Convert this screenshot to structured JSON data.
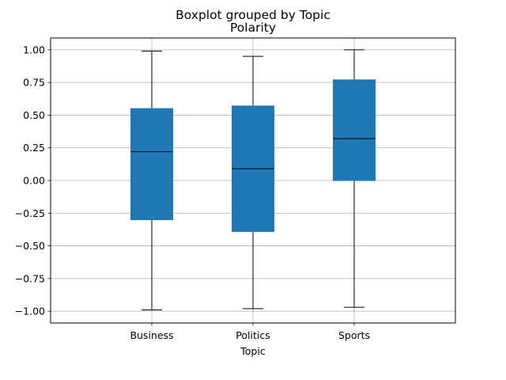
{
  "chart_data": {
    "type": "box",
    "suptitle": "Boxplot grouped by Topic",
    "title": "Polarity",
    "xlabel": "Topic",
    "ylabel": "",
    "categories": [
      "Business",
      "Politics",
      "Sports"
    ],
    "boxes": [
      {
        "category": "Business",
        "whisker_low": -0.99,
        "q1": -0.3,
        "median": 0.22,
        "q3": 0.55,
        "whisker_high": 0.99
      },
      {
        "category": "Politics",
        "whisker_low": -0.98,
        "q1": -0.39,
        "median": 0.09,
        "q3": 0.57,
        "whisker_high": 0.95
      },
      {
        "category": "Sports",
        "whisker_low": -0.97,
        "q1": 0.0,
        "median": 0.32,
        "q3": 0.77,
        "whisker_high": 1.0
      }
    ],
    "ylim": [
      -1.09,
      1.09
    ],
    "yticks": [
      -1.0,
      -0.75,
      -0.5,
      -0.25,
      0.0,
      0.25,
      0.5,
      0.75,
      1.0
    ],
    "ytick_labels": [
      "−1.00",
      "−0.75",
      "−0.50",
      "−0.25",
      "0.00",
      "0.25",
      "0.50",
      "0.75",
      "1.00"
    ],
    "grid": true,
    "colors": {
      "box_fill": "#1f77b4",
      "median": "#000000",
      "whisker": "#000000",
      "grid": "#b0b0b0"
    }
  }
}
